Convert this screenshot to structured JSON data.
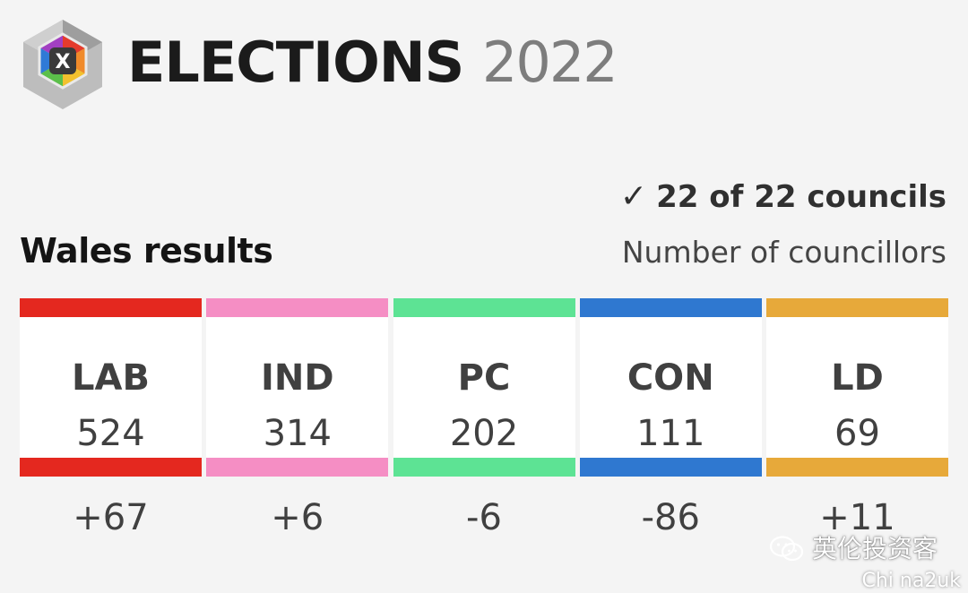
{
  "header": {
    "title_word": "ELECTIONS",
    "title_year": "2022"
  },
  "status": {
    "check_glyph": "✓",
    "text": "22 of 22 councils"
  },
  "section": {
    "title": "Wales results",
    "subtitle": "Number of councillors"
  },
  "parties": [
    {
      "abbr": "LAB",
      "count": "524",
      "change": "+67",
      "color": "#e4281f"
    },
    {
      "abbr": "IND",
      "count": "314",
      "change": "+6",
      "color": "#f58ec4"
    },
    {
      "abbr": "PC",
      "count": "202",
      "change": "-6",
      "color": "#5de394"
    },
    {
      "abbr": "CON",
      "count": "111",
      "change": "-86",
      "color": "#2f78d0"
    },
    {
      "abbr": "LD",
      "count": "69",
      "change": "+11",
      "color": "#e7a93a"
    }
  ],
  "watermark": {
    "text": "英伦投资客",
    "sub": "Chi na2uk",
    "icon": "wechat-icon"
  }
}
